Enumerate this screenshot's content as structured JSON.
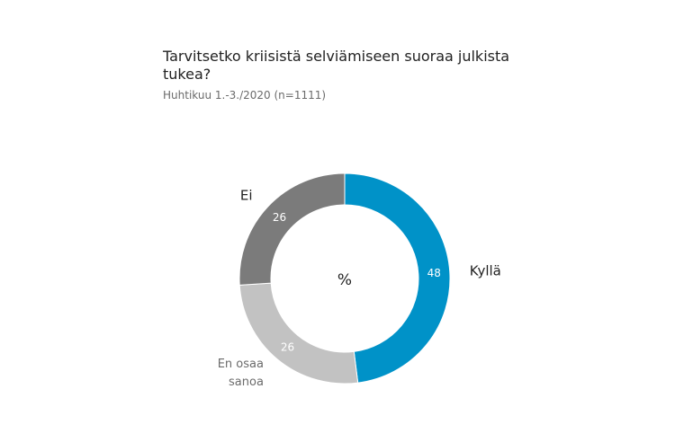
{
  "header": {
    "title": "Tarvitsetko kriisistä selviämiseen suoraa julkista tukea?",
    "subtitle": "Huhtikuu 1.-3./2020 (n=1111)"
  },
  "chart_data": {
    "type": "pie",
    "donut": true,
    "center_label": "%",
    "categories": [
      "Kyllä",
      "En osaa sanoa",
      "Ei"
    ],
    "values": [
      48,
      26,
      26
    ],
    "category_label_lines": [
      [
        "Kyllä"
      ],
      [
        "En osaa",
        "sanoa"
      ],
      [
        "Ei"
      ]
    ],
    "colors": [
      "#0092c8",
      "#c2c2c2",
      "#7b7b7b"
    ],
    "label_colors": [
      "#222222",
      "#6b6b6b",
      "#222222"
    ],
    "legend": "none"
  }
}
